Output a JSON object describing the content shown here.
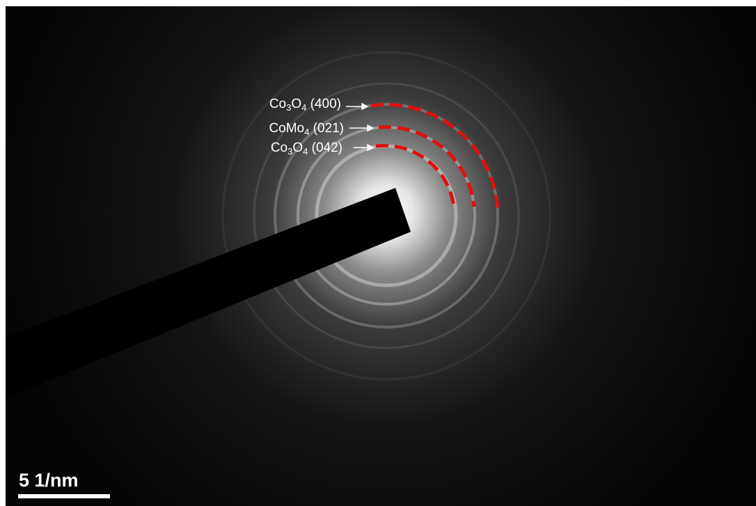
{
  "labels": [
    {
      "segments": [
        "Co",
        "3",
        "O",
        "4",
        " (400)"
      ]
    },
    {
      "segments": [
        "CoMo",
        "4",
        " (021)"
      ]
    },
    {
      "segments": [
        "Co",
        "3",
        "O",
        "4",
        " (042)"
      ]
    }
  ],
  "scale_bar": "5 1/nm"
}
